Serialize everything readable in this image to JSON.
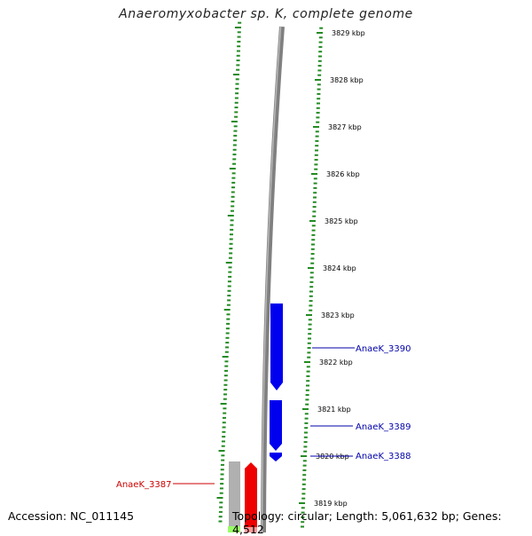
{
  "title": "Anaeromyxobacter sp. K, complete genome",
  "accession_text": "Accession: NC_011145",
  "summary_text": "Topology: circular; Length: 5,061,632 bp; Genes: 4,512",
  "colors": {
    "backbone": "#808080",
    "ticks": "#228b22",
    "forward_gene": "#0000ee",
    "reverse_gene": "#ee0000",
    "other_gene": "#b0b0b0",
    "highlight_strip": "#99ff66"
  },
  "ticks": [
    {
      "label": "3829 kbp",
      "kbp": 3829
    },
    {
      "label": "3828 kbp",
      "kbp": 3828
    },
    {
      "label": "3827 kbp",
      "kbp": 3827
    },
    {
      "label": "3826 kbp",
      "kbp": 3826
    },
    {
      "label": "3825 kbp",
      "kbp": 3825
    },
    {
      "label": "3824 kbp",
      "kbp": 3824
    },
    {
      "label": "3823 kbp",
      "kbp": 3823
    },
    {
      "label": "3822 kbp",
      "kbp": 3822
    },
    {
      "label": "3821 kbp",
      "kbp": 3821
    },
    {
      "label": "3820 kbp",
      "kbp": 3820
    },
    {
      "label": "3819 kbp",
      "kbp": 3819
    }
  ],
  "genes": [
    {
      "name": "AnaeK_3390",
      "strand": "forward",
      "color": "#0000ee"
    },
    {
      "name": "AnaeK_3389",
      "strand": "forward",
      "color": "#0000ee"
    },
    {
      "name": "AnaeK_3388",
      "strand": "forward",
      "color": "#0000ee"
    },
    {
      "name": "AnaeK_3387",
      "strand": "reverse",
      "color": "#ee0000"
    }
  ]
}
